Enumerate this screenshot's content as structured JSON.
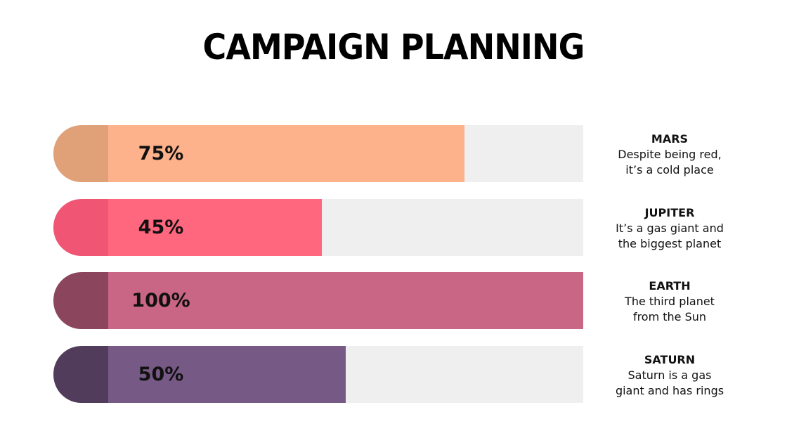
{
  "title": "CAMPAIGN PLANNING",
  "track_color": "#efefef",
  "chart_data": {
    "type": "bar",
    "orientation": "horizontal",
    "categories": [
      "MARS",
      "JUPITER",
      "EARTH",
      "SATURN"
    ],
    "values": [
      75,
      45,
      100,
      50
    ],
    "labels": [
      "75%",
      "45%",
      "100%",
      "50%"
    ],
    "ylim": [
      0,
      100
    ]
  },
  "items": [
    {
      "name": "MARS",
      "percent_label": "75%",
      "value": 75,
      "line1": "Despite being red,",
      "line2": "it’s a cold place",
      "cap_color": "#e0a078",
      "fill_color": "#fdb28c"
    },
    {
      "name": "JUPITER",
      "percent_label": "45%",
      "value": 45,
      "line1": "It’s a gas giant and",
      "line2": "the biggest planet",
      "cap_color": "#f05574",
      "fill_color": "#ff677e"
    },
    {
      "name": "EARTH",
      "percent_label": "100%",
      "value": 100,
      "line1": "The third planet",
      "line2": "from the Sun",
      "cap_color": "#8b455c",
      "fill_color": "#c96585"
    },
    {
      "name": "SATURN",
      "percent_label": "50%",
      "value": 50,
      "line1": "Saturn is a gas",
      "line2": "giant and has rings",
      "cap_color": "#523c5b",
      "fill_color": "#765a85"
    }
  ]
}
